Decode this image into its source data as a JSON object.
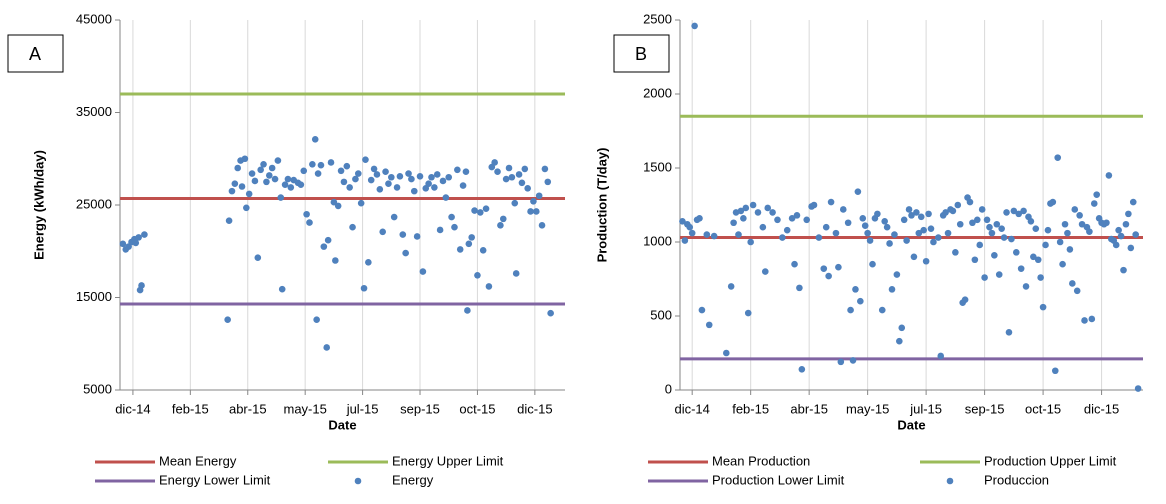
{
  "chart_data": [
    {
      "type": "scatter",
      "panel_label": "A",
      "x_label": "Date",
      "y_label": "Energy (kWh/day)",
      "xlim": [
        -20,
        290
      ],
      "xticks": [
        {
          "value": -11,
          "label": "dic-14"
        },
        {
          "value": 29,
          "label": "feb-15"
        },
        {
          "value": 69,
          "label": "abr-15"
        },
        {
          "value": 109,
          "label": "may-15"
        },
        {
          "value": 149,
          "label": "jul-15"
        },
        {
          "value": 189,
          "label": "sep-15"
        },
        {
          "value": 229,
          "label": "oct-15"
        },
        {
          "value": 269,
          "label": "dic-15"
        }
      ],
      "ylim": [
        5000,
        45000
      ],
      "yticks": [
        5000,
        15000,
        25000,
        35000,
        45000
      ],
      "grid": "x",
      "legend": "bottom",
      "series": [
        {
          "name": "Mean Energy",
          "kind": "hline",
          "color": "#c0504d",
          "values": [
            25700
          ]
        },
        {
          "name": "Energy Upper Limit",
          "kind": "hline",
          "color": "#9bbb59",
          "values": [
            37000
          ]
        },
        {
          "name": "Energy Lower Limit",
          "kind": "hline",
          "color": "#8064a2",
          "values": [
            14300
          ]
        },
        {
          "name": "Energy",
          "kind": "points",
          "color": "#4f81bd",
          "x": [
            -18,
            -16,
            -14,
            -12,
            -10,
            -9,
            -7,
            -6,
            -5,
            -3,
            55,
            56,
            58,
            60,
            62,
            64,
            65,
            67,
            68,
            70,
            72,
            74,
            76,
            78,
            80,
            82,
            84,
            86,
            88,
            90,
            92,
            93,
            95,
            97,
            99,
            101,
            104,
            106,
            108,
            110,
            112,
            114,
            116,
            117,
            118,
            120,
            122,
            124,
            125,
            127,
            129,
            130,
            132,
            134,
            136,
            138,
            140,
            142,
            144,
            146,
            148,
            150,
            151,
            153,
            155,
            157,
            159,
            161,
            163,
            165,
            167,
            169,
            171,
            173,
            175,
            177,
            179,
            181,
            183,
            185,
            187,
            189,
            191,
            193,
            195,
            197,
            199,
            201,
            203,
            205,
            207,
            209,
            211,
            213,
            215,
            217,
            219,
            221,
            222,
            223,
            225,
            227,
            229,
            231,
            233,
            235,
            237,
            239,
            241,
            243,
            245,
            247,
            249,
            251,
            253,
            255,
            256,
            258,
            260,
            262,
            264,
            266,
            268,
            270,
            272,
            274,
            276,
            278,
            280
          ],
          "values": [
            20800,
            20200,
            20500,
            21000,
            21300,
            20900,
            21500,
            15800,
            16300,
            21800,
            12600,
            23300,
            26500,
            27300,
            29000,
            29800,
            27000,
            30000,
            24700,
            26200,
            28400,
            27600,
            19300,
            28800,
            29400,
            27500,
            28200,
            29000,
            27800,
            29800,
            25800,
            15900,
            27200,
            27800,
            26900,
            27700,
            27400,
            27200,
            28700,
            24000,
            23100,
            29400,
            32100,
            12600,
            28400,
            29300,
            20500,
            9600,
            21200,
            29600,
            25300,
            19000,
            24900,
            28700,
            27500,
            29200,
            26900,
            22600,
            27800,
            28400,
            25200,
            16000,
            29900,
            18800,
            27700,
            28900,
            28300,
            26700,
            22100,
            28600,
            27300,
            28000,
            23700,
            26900,
            28100,
            21800,
            19800,
            28400,
            27800,
            26500,
            21600,
            28100,
            17800,
            26800,
            27300,
            28000,
            26900,
            28300,
            22300,
            27600,
            25800,
            28000,
            23700,
            22600,
            28800,
            20200,
            27100,
            28600,
            13600,
            20800,
            21500,
            24400,
            17400,
            24200,
            20100,
            24600,
            16200,
            29100,
            29600,
            28600,
            22800,
            23500,
            27800,
            29000,
            28000,
            25200,
            17600,
            28300,
            27400,
            28900,
            26800,
            24300,
            25400,
            24300,
            26000,
            22800,
            28900,
            27500,
            13300
          ]
        }
      ]
    },
    {
      "type": "scatter",
      "panel_label": "B",
      "x_label": "Date",
      "y_label": "Production (T/day)",
      "xlim": [
        3,
        193
      ],
      "xticks": [
        {
          "value": 8,
          "label": "dic-14"
        },
        {
          "value": 32,
          "label": "feb-15"
        },
        {
          "value": 56,
          "label": "abr-15"
        },
        {
          "value": 80,
          "label": "may-15"
        },
        {
          "value": 104,
          "label": "jul-15"
        },
        {
          "value": 128,
          "label": "sep-15"
        },
        {
          "value": 152,
          "label": "oct-15"
        },
        {
          "value": 176,
          "label": "dic-15"
        }
      ],
      "ylim": [
        0,
        2500
      ],
      "yticks": [
        0,
        500,
        1000,
        1500,
        2000,
        2500
      ],
      "grid": "x",
      "legend": "bottom",
      "series": [
        {
          "name": "Mean Production",
          "kind": "hline",
          "color": "#c0504d",
          "values": [
            1030
          ]
        },
        {
          "name": "Production Upper Limit",
          "kind": "hline",
          "color": "#9bbb59",
          "values": [
            1850
          ]
        },
        {
          "name": "Production Lower Limit",
          "kind": "hline",
          "color": "#8064a2",
          "values": [
            210
          ]
        },
        {
          "name": "Produccion",
          "kind": "points",
          "color": "#4f81bd",
          "x": [
            4,
            5,
            6,
            7,
            8,
            9,
            10,
            11,
            12,
            14,
            15,
            17,
            22,
            24,
            25,
            26,
            27,
            28,
            29,
            30,
            31,
            32,
            33,
            35,
            37,
            38,
            39,
            41,
            43,
            45,
            47,
            49,
            50,
            51,
            52,
            53,
            55,
            57,
            58,
            60,
            62,
            63,
            64,
            65,
            67,
            68,
            69,
            70,
            72,
            73,
            74,
            75,
            76,
            77,
            78,
            79,
            80,
            81,
            82,
            83,
            84,
            86,
            87,
            88,
            89,
            90,
            91,
            92,
            93,
            94,
            95,
            96,
            97,
            98,
            99,
            100,
            101,
            102,
            103,
            104,
            105,
            106,
            107,
            109,
            110,
            111,
            112,
            113,
            114,
            115,
            116,
            117,
            118,
            119,
            120,
            121,
            122,
            123,
            124,
            125,
            126,
            127,
            128,
            129,
            130,
            131,
            132,
            133,
            134,
            135,
            136,
            137,
            138,
            139,
            140,
            141,
            142,
            143,
            144,
            145,
            146,
            147,
            148,
            149,
            150,
            151,
            152,
            153,
            154,
            155,
            156,
            157,
            158,
            159,
            160,
            161,
            162,
            163,
            164,
            165,
            166,
            167,
            168,
            169,
            170,
            171,
            172,
            173,
            174,
            175,
            176,
            177,
            178,
            179,
            180,
            181,
            182,
            183,
            184,
            185,
            186,
            187,
            188,
            189,
            190,
            191
          ],
          "values": [
            1140,
            1010,
            1120,
            1100,
            1060,
            2460,
            1150,
            1160,
            540,
            1050,
            440,
            1040,
            250,
            700,
            1130,
            1200,
            1050,
            1210,
            1160,
            1230,
            520,
            1000,
            1250,
            1200,
            1100,
            800,
            1230,
            1200,
            1150,
            1030,
            1080,
            1160,
            850,
            1180,
            690,
            140,
            1150,
            1240,
            1250,
            1030,
            820,
            1100,
            770,
            1270,
            1060,
            830,
            190,
            1220,
            1130,
            540,
            200,
            680,
            1340,
            600,
            1160,
            1110,
            1060,
            1010,
            850,
            1160,
            1190,
            540,
            1140,
            1100,
            990,
            680,
            1050,
            780,
            330,
            420,
            1150,
            1010,
            1220,
            1180,
            900,
            1200,
            1060,
            1170,
            1080,
            870,
            1190,
            1090,
            1000,
            1030,
            230,
            1180,
            1200,
            1060,
            1220,
            1210,
            930,
            1250,
            1120,
            590,
            610,
            1300,
            1270,
            1130,
            880,
            1150,
            980,
            1220,
            760,
            1150,
            1100,
            1060,
            910,
            1120,
            780,
            1090,
            1030,
            1200,
            390,
            1020,
            1210,
            930,
            1190,
            820,
            1210,
            700,
            1170,
            1140,
            900,
            1090,
            880,
            760,
            560,
            980,
            1080,
            1260,
            1270,
            130,
            1570,
            1000,
            850,
            1120,
            1060,
            950,
            720,
            1220,
            670,
            1180,
            1120,
            470,
            1100,
            1070,
            480,
            1260,
            1320,
            1160,
            1130,
            1120,
            1130,
            1450,
            1020,
            1010,
            980,
            1080,
            1040,
            810,
            1120,
            1190,
            960,
            1270,
            1050,
            10
          ]
        }
      ]
    }
  ]
}
